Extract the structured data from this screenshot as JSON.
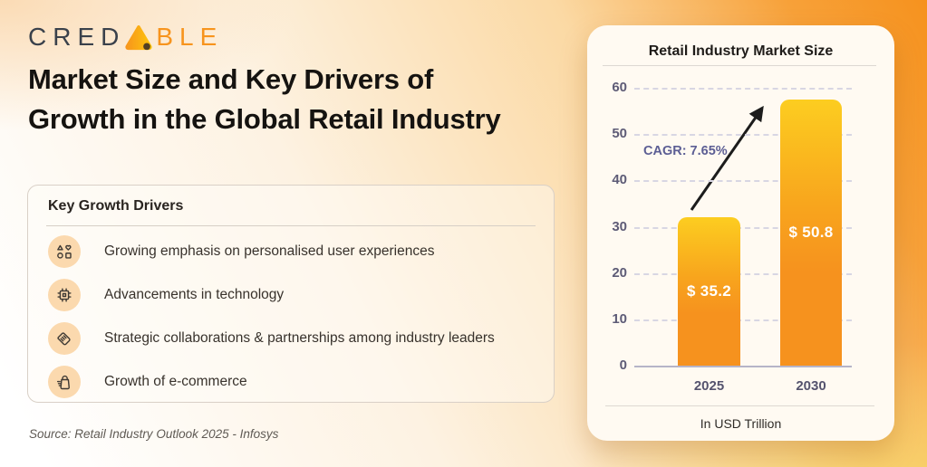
{
  "brand": {
    "name": "CredAble",
    "logo_prefix": "CRED",
    "logo_suffix": "BLE",
    "logo_dark": "#3A414B",
    "logo_orange": "#F7941D"
  },
  "page": {
    "title": "Market Size and Key Drivers of Growth in the Global Retail Industry",
    "source": "Source: Retail Industry Outlook 2025 - Infosys"
  },
  "drivers_card": {
    "heading": "Key Growth Drivers",
    "items": [
      {
        "icon": "shapes-icon",
        "label": "Growing emphasis on personalised user experiences"
      },
      {
        "icon": "cpu-chip-icon",
        "label": "Advancements in technology"
      },
      {
        "icon": "handshake-icon",
        "label": "Strategic collaborations & partnerships among industry leaders"
      },
      {
        "icon": "shopping-bag-icon",
        "label": "Growth of e-commerce"
      }
    ]
  },
  "chart_data": {
    "type": "bar",
    "title": "Retail Industry Market Size",
    "categories": [
      "2025",
      "2030"
    ],
    "values": [
      35.2,
      50.8
    ],
    "bar_labels": [
      "$ 35.2",
      "$ 50.8"
    ],
    "annotation": "CAGR: 7.65%",
    "unit_label": "In USD Trillion",
    "xlabel": "",
    "ylabel": "",
    "ylim": [
      0,
      60
    ],
    "yticks": [
      60,
      50,
      40,
      30,
      20,
      10,
      0
    ],
    "grid": "horizontal dashed",
    "legend": false,
    "bar_heights_as_drawn_units": [
      32,
      57.5
    ],
    "colors": {
      "bar_gradient_top": "#FCCD20",
      "bar_gradient_bottom": "#F6921E",
      "axis_text": "#5D5B76",
      "annotation_text": "#5C5E94",
      "bar_value_text": "#FFFFFF"
    }
  }
}
